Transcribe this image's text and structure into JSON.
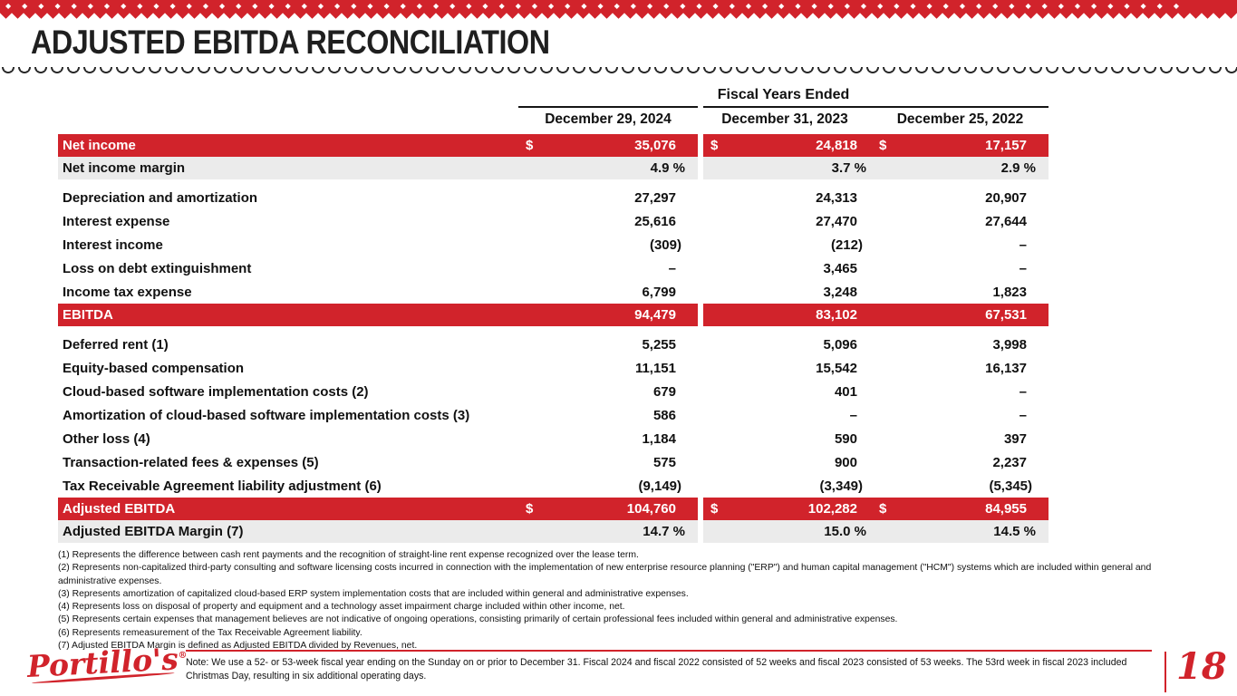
{
  "slide": {
    "title": "ADJUSTED EBITDA RECONCILIATION",
    "page_number": "18"
  },
  "brand": {
    "logo_text": "Portillo's",
    "registered_mark": "®",
    "accent_color": "#d1232b",
    "highlight_row_color": "#d1232b",
    "subtle_row_color": "#ebebeb"
  },
  "table": {
    "group_header": "Fiscal Years Ended",
    "currency_symbol": "$",
    "columns": [
      "December 29, 2024",
      "December 31, 2023",
      "December 25, 2022"
    ],
    "rows": [
      {
        "label": "Net income",
        "style": "red",
        "dollar": true,
        "values": [
          "35,076",
          "24,818",
          "17,157"
        ]
      },
      {
        "label": "Net income margin",
        "style": "gray",
        "values": [
          "4.9 %",
          "3.7 %",
          "2.9 %"
        ]
      },
      {
        "style": "spacer"
      },
      {
        "label": "Depreciation and amortization",
        "style": "plain",
        "values": [
          "27,297",
          "24,313",
          "20,907"
        ]
      },
      {
        "label": "Interest expense",
        "style": "plain",
        "values": [
          "25,616",
          "27,470",
          "27,644"
        ]
      },
      {
        "label": "Interest income",
        "style": "plain",
        "values": [
          "(309)",
          "(212)",
          "–"
        ]
      },
      {
        "label": "Loss on debt extinguishment",
        "style": "plain",
        "values": [
          "–",
          "3,465",
          "–"
        ]
      },
      {
        "label": "Income tax expense",
        "style": "plain",
        "values": [
          "6,799",
          "3,248",
          "1,823"
        ]
      },
      {
        "label": "EBITDA",
        "style": "red",
        "values": [
          "94,479",
          "83,102",
          "67,531"
        ]
      },
      {
        "style": "spacer"
      },
      {
        "label": "Deferred rent (1)",
        "style": "plain",
        "values": [
          "5,255",
          "5,096",
          "3,998"
        ]
      },
      {
        "label": "Equity-based compensation",
        "style": "plain",
        "values": [
          "11,151",
          "15,542",
          "16,137"
        ]
      },
      {
        "label": "Cloud-based software implementation costs (2)",
        "style": "plain",
        "values": [
          "679",
          "401",
          "–"
        ]
      },
      {
        "label": "Amortization of cloud-based software implementation costs (3)",
        "style": "plain",
        "values": [
          "586",
          "–",
          "–"
        ]
      },
      {
        "label": "Other loss (4)",
        "style": "plain",
        "values": [
          "1,184",
          "590",
          "397"
        ]
      },
      {
        "label": "Transaction-related fees & expenses (5)",
        "style": "plain",
        "values": [
          "575",
          "900",
          "2,237"
        ]
      },
      {
        "label": "Tax Receivable Agreement liability adjustment (6)",
        "style": "plain",
        "values": [
          "(9,149)",
          "(3,349)",
          "(5,345)"
        ]
      },
      {
        "label": "Adjusted EBITDA",
        "style": "red",
        "dollar": true,
        "values": [
          "104,760",
          "102,282",
          "84,955"
        ]
      },
      {
        "label": "Adjusted EBITDA Margin (7)",
        "style": "gray",
        "values": [
          "14.7 %",
          "15.0 %",
          "14.5 %"
        ]
      }
    ]
  },
  "footnotes": [
    "(1) Represents the difference between cash rent payments and the recognition of straight-line rent expense recognized over the lease term.",
    "(2) Represents non-capitalized third-party consulting and software licensing costs incurred in connection with the implementation of new enterprise resource planning (\"ERP\") and human capital management (\"HCM\") systems which are included within general and administrative expenses.",
    "(3) Represents amortization of capitalized cloud-based ERP system implementation costs that are included within general and administrative expenses.",
    "(4) Represents loss on disposal of property and equipment and a technology asset impairment charge included within other income, net.",
    "(5) Represents certain expenses that management believes are not indicative of ongoing operations, consisting primarily of certain professional fees included within general and administrative expenses.",
    "(6) Represents remeasurement of the Tax Receivable Agreement liability.",
    "(7) Adjusted EBITDA Margin is defined as Adjusted EBITDA divided by Revenues, net."
  ],
  "footer": {
    "note": "Note: We use a 52- or 53-week fiscal year ending on the Sunday on or prior to December 31. Fiscal 2024 and fiscal 2022 consisted of 52 weeks and fiscal 2023 consisted of 53 weeks. The 53rd week in fiscal 2023 included Christmas Day, resulting in six additional operating days."
  }
}
